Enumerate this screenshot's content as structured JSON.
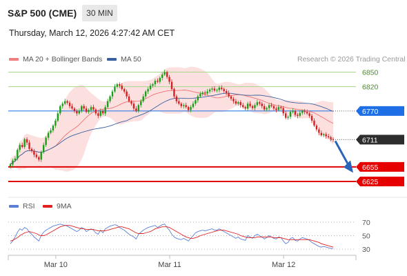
{
  "header": {
    "title": "S&P 500 (CME)",
    "interval": "30 MIN",
    "datetime": "Thursday, March 12, 2026 4:27:42 AM CET"
  },
  "legend": {
    "items": [
      {
        "label": "MA 20 + Bollinger Bands",
        "color": "#f08080"
      },
      {
        "label": "MA 50",
        "color": "#3a5fa0"
      }
    ],
    "research": "Research © 2026 Trading Central"
  },
  "rsi_legend": {
    "items": [
      {
        "label": "RSI",
        "color": "#5b7fd6"
      },
      {
        "label": "9MA",
        "color": "#e02020"
      }
    ]
  },
  "chart_data": [
    {
      "type": "candlestick",
      "x_tick_labels": [
        "Mar 10",
        "Mar 11",
        "Mar 12"
      ],
      "x_tick_index": [
        20,
        68,
        116
      ],
      "ylim": [
        6598,
        6862
      ],
      "levels": [
        {
          "value": 6850,
          "label": "6850",
          "style": "resistance-green"
        },
        {
          "value": 6820,
          "label": "6820",
          "style": "resistance-green"
        },
        {
          "value": 6770,
          "label": "6770",
          "style": "pivot-blue"
        },
        {
          "value": 6711,
          "label": "6711",
          "style": "last-price"
        },
        {
          "value": 6655,
          "label": "6655",
          "style": "support-red"
        },
        {
          "value": 6625,
          "label": "6625",
          "style": "support-red"
        }
      ],
      "close": [
        6660,
        6668,
        6672,
        6690,
        6700,
        6696,
        6712,
        6705,
        6692,
        6688,
        6680,
        6675,
        6670,
        6685,
        6700,
        6715,
        6725,
        6730,
        6740,
        6750,
        6765,
        6780,
        6785,
        6790,
        6787,
        6780,
        6775,
        6770,
        6765,
        6770,
        6780,
        6775,
        6768,
        6772,
        6778,
        6773,
        6765,
        6760,
        6770,
        6765,
        6778,
        6790,
        6800,
        6810,
        6820,
        6825,
        6822,
        6815,
        6810,
        6800,
        6790,
        6785,
        6775,
        6770,
        6782,
        6790,
        6800,
        6810,
        6815,
        6822,
        6825,
        6832,
        6830,
        6838,
        6845,
        6850,
        6840,
        6830,
        6815,
        6800,
        6790,
        6785,
        6780,
        6782,
        6778,
        6772,
        6778,
        6785,
        6792,
        6800,
        6805,
        6808,
        6806,
        6810,
        6814,
        6816,
        6812,
        6813,
        6818,
        6815,
        6811,
        6807,
        6800,
        6795,
        6790,
        6785,
        6788,
        6782,
        6778,
        6775,
        6785,
        6780,
        6776,
        6782,
        6788,
        6785,
        6780,
        6773,
        6776,
        6782,
        6780,
        6775,
        6772,
        6778,
        6776,
        6765,
        6756,
        6758,
        6768,
        6770,
        6762,
        6760,
        6766,
        6770,
        6768,
        6765,
        6760,
        6750,
        6740,
        6732,
        6725,
        6720,
        6722,
        6718,
        6716,
        6712,
        6711
      ],
      "arrow_forecast": {
        "from": 6711,
        "to": 6640
      },
      "rsi": {
        "ylim": [
          25,
          80
        ],
        "levels": [
          70,
          50,
          30
        ],
        "rsi_values": [
          38,
          42,
          48,
          55,
          60,
          58,
          62,
          60,
          55,
          52,
          48,
          45,
          42,
          50,
          55,
          58,
          60,
          62,
          64,
          65,
          66,
          67,
          66,
          65,
          64,
          62,
          60,
          58,
          56,
          58,
          62,
          60,
          56,
          58,
          60,
          58,
          54,
          52,
          58,
          54,
          60,
          62,
          64,
          65,
          66,
          65,
          62,
          60,
          58,
          55,
          52,
          50,
          48,
          45,
          52,
          55,
          58,
          60,
          62,
          63,
          64,
          65,
          62,
          64,
          66,
          67,
          62,
          58,
          52,
          48,
          46,
          45,
          44,
          46,
          44,
          42,
          46,
          50,
          54,
          56,
          57,
          58,
          57,
          58,
          59,
          60,
          58,
          58,
          60,
          58,
          56,
          54,
          52,
          50,
          48,
          46,
          48,
          45,
          44,
          43,
          50,
          48,
          46,
          50,
          52,
          50,
          48,
          45,
          47,
          50,
          48,
          46,
          45,
          48,
          47,
          42,
          38,
          40,
          46,
          47,
          43,
          42,
          45,
          47,
          46,
          45,
          43,
          40,
          38,
          36,
          34,
          33,
          34,
          33,
          32,
          31,
          31
        ],
        "ma9_values": [
          42,
          43,
          45,
          47,
          50,
          52,
          54,
          55,
          56,
          55,
          54,
          53,
          51,
          50,
          50,
          51,
          53,
          55,
          57,
          59,
          61,
          63,
          64,
          65,
          65,
          65,
          64,
          63,
          62,
          61,
          60,
          60,
          59,
          59,
          59,
          59,
          58,
          57,
          57,
          57,
          57,
          58,
          59,
          60,
          61,
          62,
          63,
          63,
          62,
          61,
          60,
          58,
          56,
          54,
          53,
          53,
          53,
          54,
          55,
          56,
          58,
          60,
          61,
          62,
          63,
          63,
          63,
          62,
          60,
          58,
          56,
          54,
          52,
          50,
          48,
          47,
          46,
          46,
          47,
          48,
          50,
          51,
          52,
          53,
          54,
          55,
          56,
          57,
          58,
          58,
          58,
          57,
          56,
          55,
          54,
          53,
          52,
          50,
          49,
          48,
          47,
          47,
          47,
          47,
          48,
          48,
          48,
          48,
          48,
          48,
          48,
          47,
          47,
          47,
          47,
          46,
          45,
          44,
          44,
          44,
          44,
          44,
          44,
          44,
          44,
          44,
          44,
          43,
          42,
          41,
          40,
          38,
          37,
          36,
          35,
          34,
          33
        ]
      }
    }
  ]
}
